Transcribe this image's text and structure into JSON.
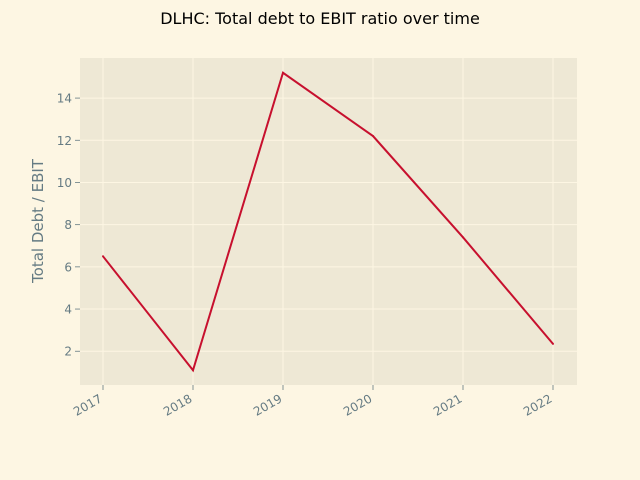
{
  "chart_data": {
    "type": "line",
    "title": "DLHC: Total debt to EBIT ratio over time",
    "xlabel": "",
    "ylabel": "Total Debt / EBIT",
    "x": [
      "2017",
      "2018",
      "2019",
      "2020",
      "2021",
      "2022"
    ],
    "series": [
      {
        "values": [
          6.5,
          1.1,
          15.2,
          12.2,
          7.4,
          2.35
        ]
      }
    ],
    "yticks": [
      2,
      4,
      6,
      8,
      10,
      12,
      14
    ],
    "ylim": [
      0.4,
      15.9
    ],
    "grid": true,
    "legend": "none"
  },
  "colors": {
    "background": "#fdf6e3",
    "plot_background": "#eee8d5",
    "grid": "#fdf6e3",
    "line": "#c7102e",
    "tick_text": "#657b83",
    "title_text": "#000000"
  }
}
